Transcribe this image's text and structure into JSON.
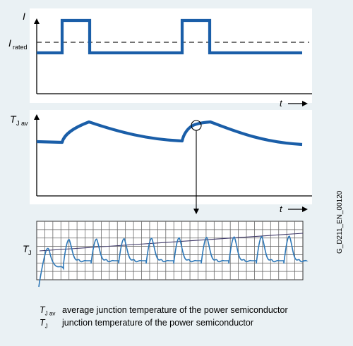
{
  "panel1": {
    "y_symbol": "I",
    "rated_symbol": "I",
    "rated_sub": "rated",
    "t_symbol": "t"
  },
  "panel2": {
    "y_symbol": "T",
    "y_sub": "J av",
    "t_symbol": "t"
  },
  "panel3": {
    "y_symbol": "T",
    "y_sub": "J"
  },
  "legend": [
    {
      "symbol": "T",
      "sub": "J av",
      "text": "average junction temperature of the power semiconductor"
    },
    {
      "symbol": "T",
      "sub": "J",
      "text": "junction temperature of the power semiconductor"
    }
  ],
  "doc_id": "G_D211_EN_00120",
  "colors": {
    "signal": "#1a5ea8",
    "signal_detail": "#2e78b8",
    "trend": "#403a6a",
    "axis": "#000000",
    "grid": "#666666",
    "background": "#eaf1f4",
    "panel": "#ffffff"
  }
}
